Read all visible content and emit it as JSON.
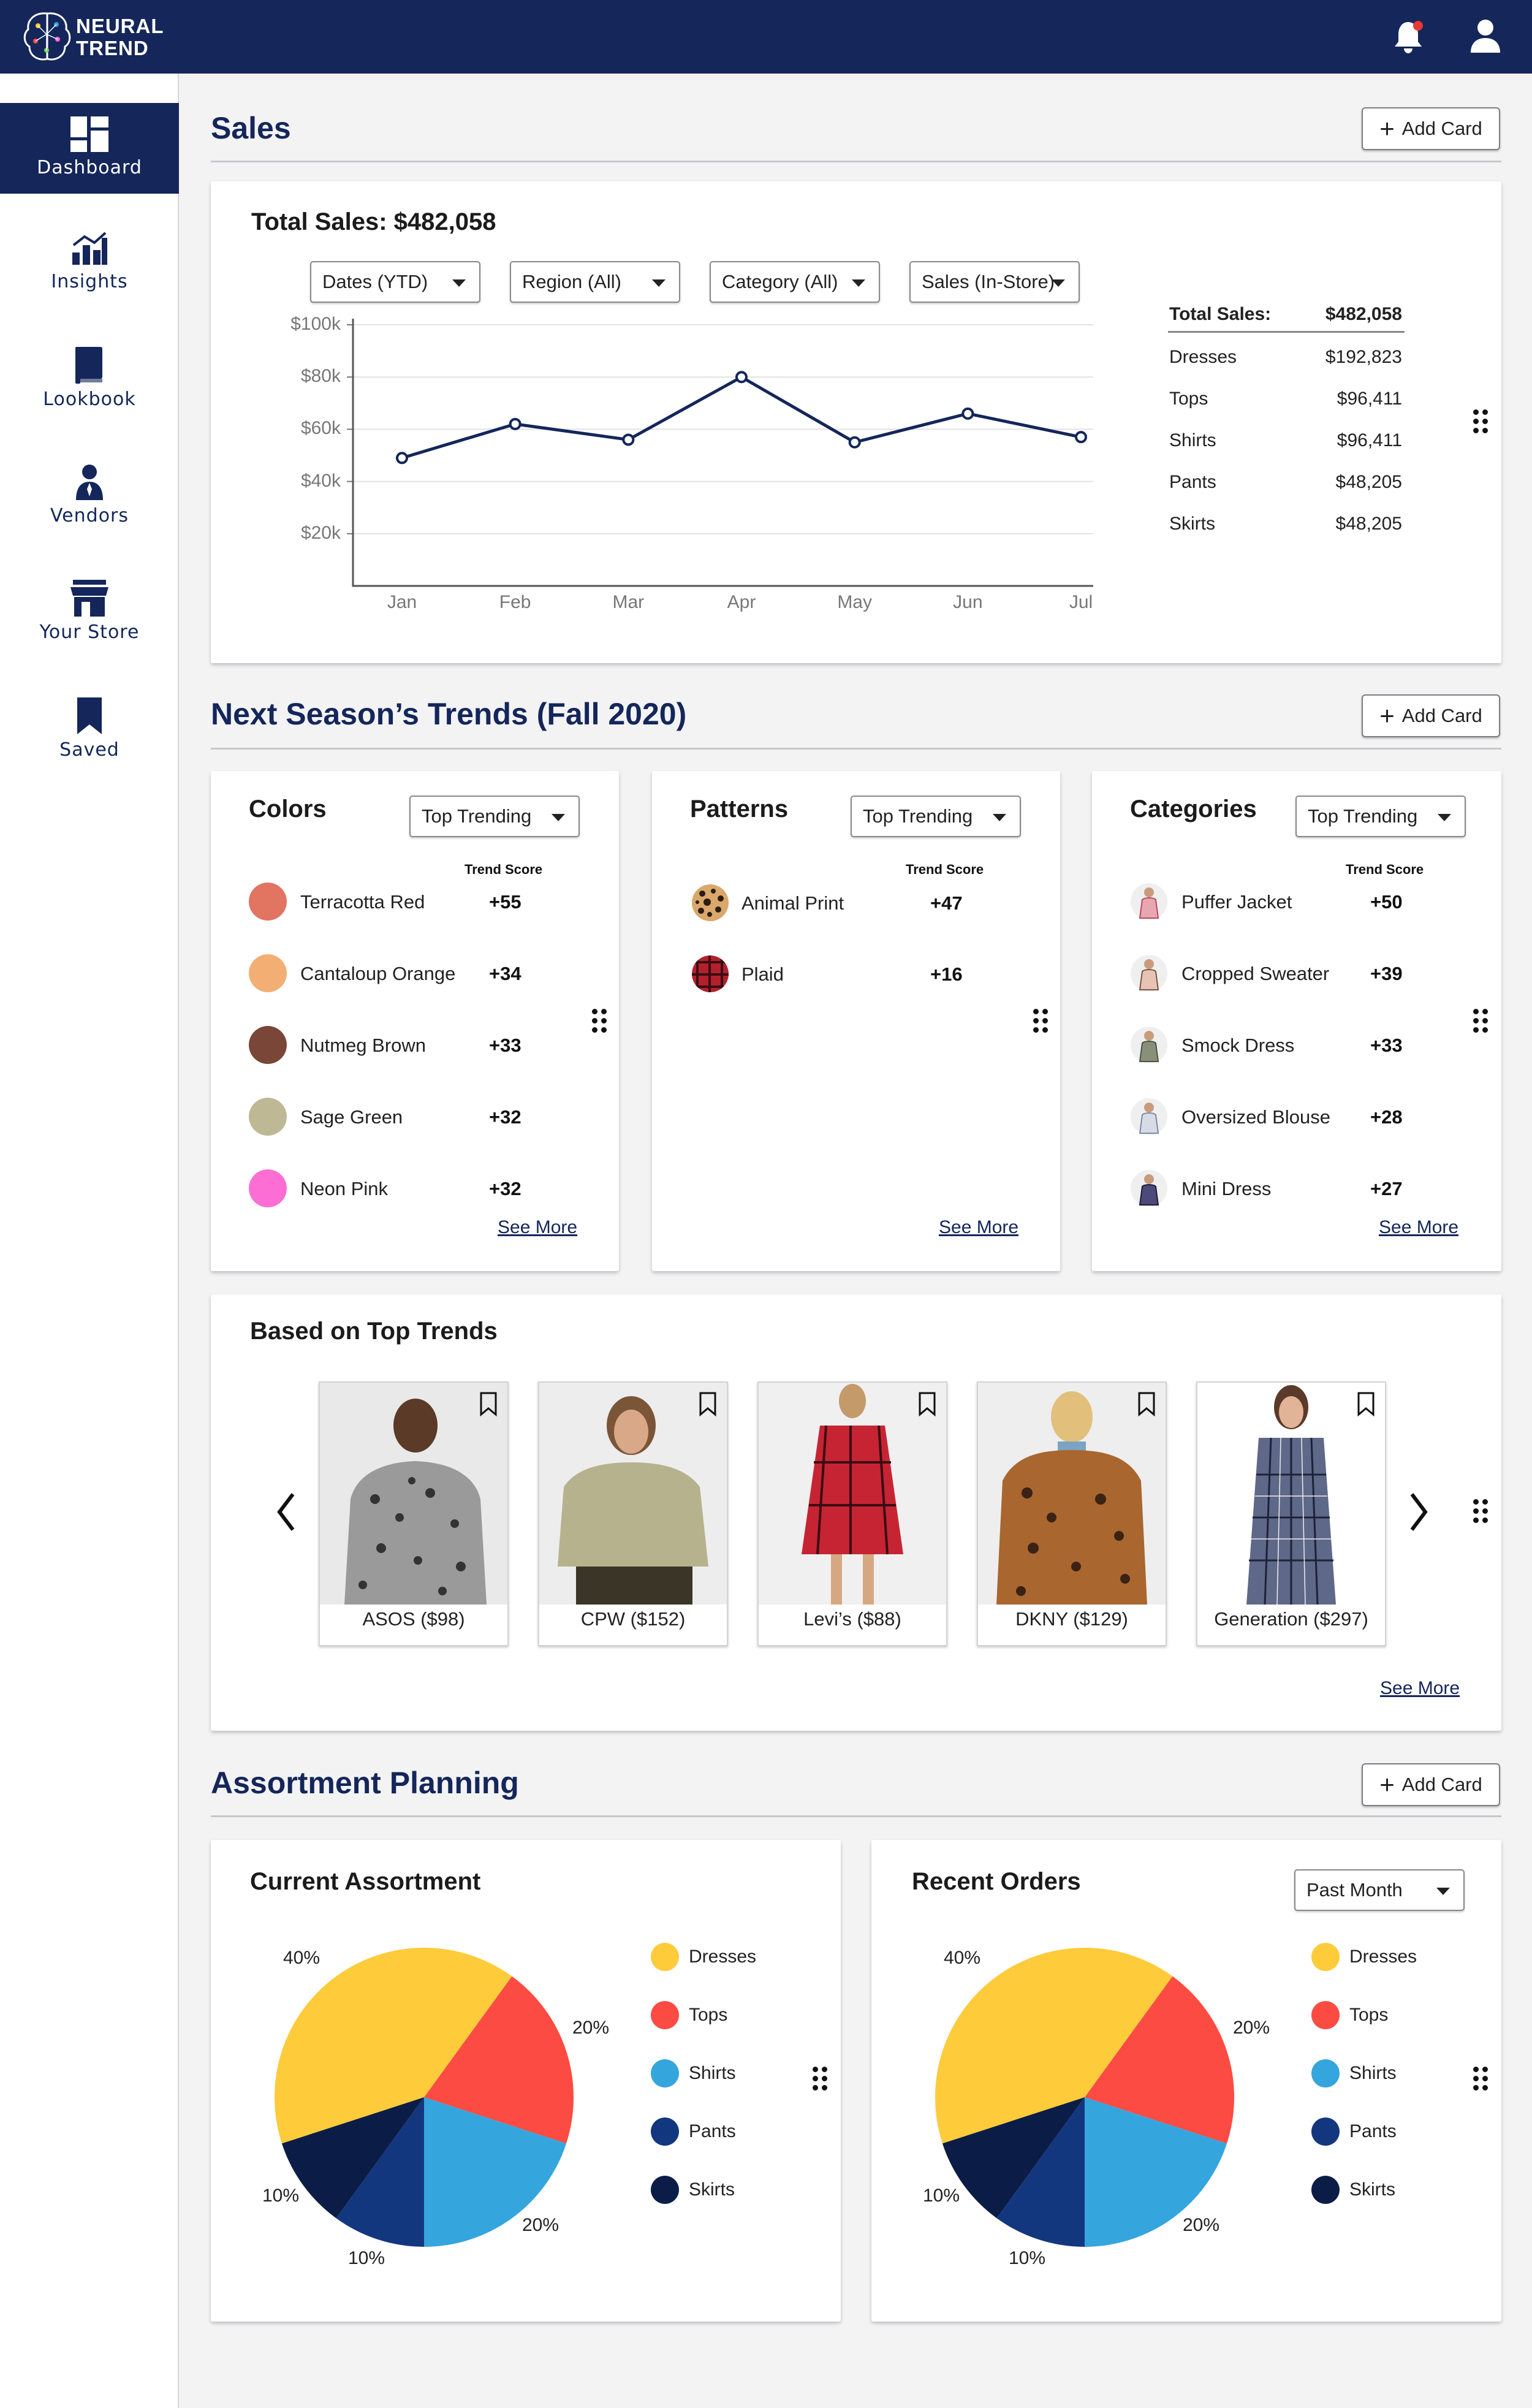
{
  "app": {
    "logo_line1": "NEURAL",
    "logo_line2": "TREND",
    "brand_color": "#14265a",
    "icons": {
      "bell": "bell-icon",
      "notification_dot": "#e53935",
      "user": "user-icon"
    }
  },
  "sidebar": {
    "items": [
      {
        "label": "Dashboard",
        "icon": "dashboard-icon",
        "active": true
      },
      {
        "label": "Insights",
        "icon": "bar-chart-icon",
        "active": false
      },
      {
        "label": "Lookbook",
        "icon": "book-icon",
        "active": false
      },
      {
        "label": "Vendors",
        "icon": "vendor-person-icon",
        "active": false
      },
      {
        "label": "Your Store",
        "icon": "store-icon",
        "active": false
      },
      {
        "label": "Saved",
        "icon": "bookmark-icon",
        "active": false
      }
    ]
  },
  "add_card_label": "Add Card",
  "see_more_label": "See More",
  "sales": {
    "section_title": "Sales",
    "card_title": "Total Sales: $482,058",
    "filters": [
      "Dates (YTD)",
      "Region (All)",
      "Category (All)",
      "Sales (In-Store)"
    ],
    "table_header": {
      "label": "Total Sales:",
      "value": "$482,058"
    },
    "table_rows": [
      {
        "label": "Dresses",
        "value": "$192,823"
      },
      {
        "label": "Tops",
        "value": "$96,411"
      },
      {
        "label": "Shirts",
        "value": "$96,411"
      },
      {
        "label": "Pants",
        "value": "$48,205"
      },
      {
        "label": "Skirts",
        "value": "$48,205"
      }
    ]
  },
  "chart_data": [
    {
      "type": "line",
      "title": "",
      "xlabel": "",
      "ylabel": "",
      "x": [
        "Jan",
        "Feb",
        "Mar",
        "Apr",
        "May",
        "Jun",
        "Jul"
      ],
      "series": [
        {
          "values": [
            49000,
            62000,
            56000,
            80000,
            55000,
            66000,
            57000
          ]
        }
      ],
      "yticks": [
        "$100k",
        "$80k",
        "$60k",
        "$40k",
        "$20k"
      ],
      "ylim": [
        0,
        100000
      ],
      "grid": true,
      "color": "#14265a"
    },
    {
      "type": "pie",
      "title": "Current Assortment",
      "categories": [
        "Dresses",
        "Tops",
        "Shirts",
        "Pants",
        "Skirts"
      ],
      "values": [
        40,
        20,
        20,
        10,
        10
      ],
      "labels": [
        "40%",
        "20%",
        "20%",
        "10%",
        "10%"
      ],
      "colors": [
        "#fecb3b",
        "#fb4b43",
        "#35a5dd",
        "#13377f",
        "#0b1d47"
      ]
    },
    {
      "type": "pie",
      "title": "Recent Orders",
      "categories": [
        "Dresses",
        "Tops",
        "Shirts",
        "Pants",
        "Skirts"
      ],
      "values": [
        40,
        20,
        20,
        10,
        10
      ],
      "labels": [
        "40%",
        "20%",
        "20%",
        "10%",
        "10%"
      ],
      "colors": [
        "#fecb3b",
        "#fb4b43",
        "#35a5dd",
        "#13377f",
        "#0b1d47"
      ]
    }
  ],
  "trends": {
    "section_title": "Next Season’s Trends (Fall 2020)",
    "score_header": "Trend Score",
    "dropdown": "Top Trending",
    "colors": {
      "title": "Colors",
      "rows": [
        {
          "name": "Terracotta Red",
          "score": "+55",
          "swatch": "#e27462"
        },
        {
          "name": "Cantaloup Orange",
          "score": "+34",
          "swatch": "#f3af73"
        },
        {
          "name": "Nutmeg Brown",
          "score": "+33",
          "swatch": "#7a4638"
        },
        {
          "name": "Sage Green",
          "score": "+32",
          "swatch": "#bfb895"
        },
        {
          "name": "Neon Pink",
          "score": "+32",
          "swatch": "#fd6ed4"
        }
      ]
    },
    "patterns": {
      "title": "Patterns",
      "rows": [
        {
          "name": "Animal Print",
          "score": "+47",
          "icon": "leopard-pattern-icon"
        },
        {
          "name": "Plaid",
          "score": "+16",
          "icon": "plaid-pattern-icon"
        }
      ]
    },
    "categories": {
      "title": "Categories",
      "rows": [
        {
          "name": "Puffer Jacket",
          "score": "+50",
          "icon": "puffer-jacket-thumb"
        },
        {
          "name": "Cropped Sweater",
          "score": "+39",
          "icon": "cropped-sweater-thumb"
        },
        {
          "name": "Smock Dress",
          "score": "+33",
          "icon": "smock-dress-thumb"
        },
        {
          "name": "Oversized Blouse",
          "score": "+28",
          "icon": "oversized-blouse-thumb"
        },
        {
          "name": "Mini Dress",
          "score": "+27",
          "icon": "mini-dress-thumb"
        }
      ]
    }
  },
  "top_trends": {
    "title": "Based on Top Trends",
    "products": [
      {
        "caption": "ASOS ($98)",
        "image": "leopard-turtleneck-photo"
      },
      {
        "caption": "CPW ($152)",
        "image": "sage-cropped-sweater-photo"
      },
      {
        "caption": "Levi’s ($88)",
        "image": "red-plaid-dress-photo"
      },
      {
        "caption": "DKNY ($129)",
        "image": "leopard-puffer-jacket-photo"
      },
      {
        "caption": "Generation ($297)",
        "image": "plaid-shirt-dress-photo"
      }
    ]
  },
  "assortment": {
    "section_title": "Assortment Planning",
    "current_title": "Current Assortment",
    "orders_title": "Recent Orders",
    "orders_filter": "Past Month"
  }
}
